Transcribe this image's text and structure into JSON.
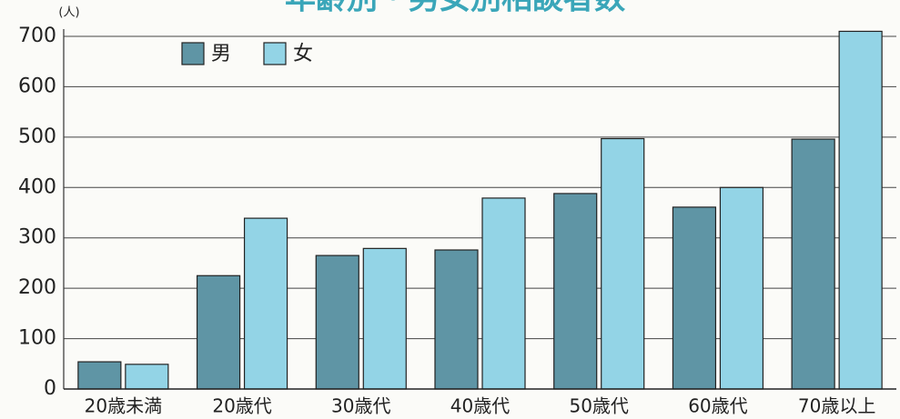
{
  "chart_data": {
    "type": "bar",
    "title": "年齢別・男女別相談者数",
    "y_unit": "(人)",
    "categories": [
      "20歳未満",
      "20歳代",
      "30歳代",
      "40歳代",
      "50歳代",
      "60歳代",
      "70歳以上"
    ],
    "series": [
      {
        "name": "男",
        "color": "#5f95a5",
        "values": [
          54,
          225,
          265,
          276,
          388,
          361,
          496
        ]
      },
      {
        "name": "女",
        "color": "#93d4e6",
        "values": [
          49,
          339,
          279,
          379,
          497,
          400,
          710
        ]
      }
    ],
    "ylim": [
      0,
      700
    ],
    "yticks": [
      0,
      100,
      200,
      300,
      400,
      500,
      600,
      700
    ],
    "grid": true,
    "legend": "top-left"
  }
}
